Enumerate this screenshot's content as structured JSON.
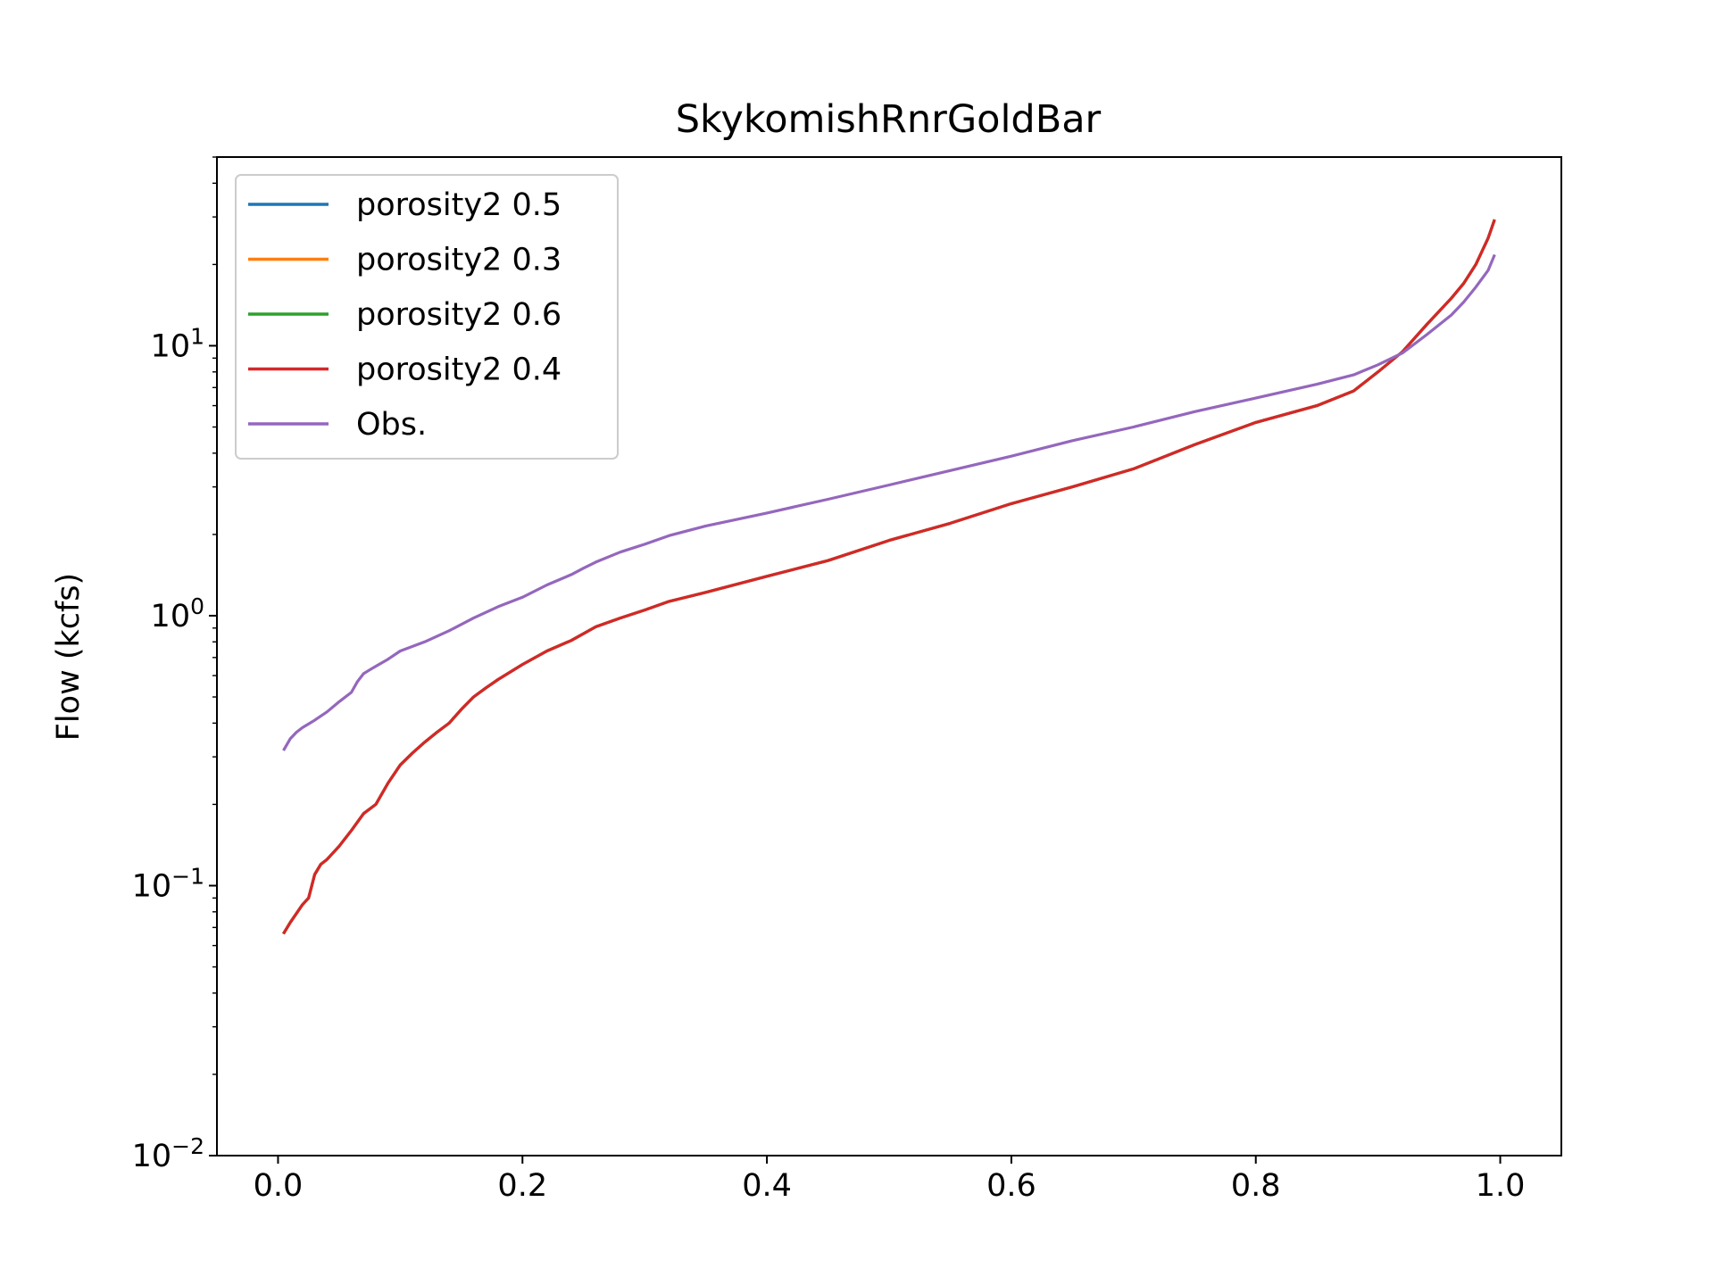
{
  "chart_data": {
    "type": "line",
    "title": "SkykomishRnrGoldBar",
    "xlabel": "",
    "ylabel": "Flow (kcfs)",
    "xlim": [
      -0.05,
      1.05
    ],
    "ylim": [
      0.01,
      50
    ],
    "yscale": "log",
    "xticks": [
      0.0,
      0.2,
      0.4,
      0.6,
      0.8,
      1.0
    ],
    "xtick_labels": [
      "0.0",
      "0.2",
      "0.4",
      "0.6",
      "0.8",
      "1.0"
    ],
    "yticks": [
      {
        "value": 0.01,
        "base": "10",
        "exp": "−2"
      },
      {
        "value": 0.1,
        "base": "10",
        "exp": "−1"
      },
      {
        "value": 1,
        "base": "10",
        "exp": "0"
      },
      {
        "value": 10,
        "base": "10",
        "exp": "1"
      }
    ],
    "grid": false,
    "legend_position": "upper-left",
    "series": [
      {
        "name": "porosity2 0.5",
        "color": "#1f77b4",
        "x": [
          0.005,
          0.01,
          0.02,
          0.025,
          0.03,
          0.035,
          0.04,
          0.05,
          0.06,
          0.07,
          0.08,
          0.09,
          0.1,
          0.11,
          0.12,
          0.13,
          0.14,
          0.15,
          0.16,
          0.17,
          0.18,
          0.2,
          0.22,
          0.24,
          0.26,
          0.28,
          0.3,
          0.32,
          0.35,
          0.4,
          0.45,
          0.5,
          0.55,
          0.6,
          0.65,
          0.7,
          0.75,
          0.8,
          0.85,
          0.88,
          0.9,
          0.92,
          0.94,
          0.96,
          0.97,
          0.98,
          0.99,
          0.995
        ],
        "y": [
          0.067,
          0.073,
          0.085,
          0.09,
          0.11,
          0.12,
          0.125,
          0.14,
          0.16,
          0.185,
          0.2,
          0.24,
          0.28,
          0.31,
          0.34,
          0.37,
          0.4,
          0.45,
          0.5,
          0.54,
          0.58,
          0.66,
          0.74,
          0.81,
          0.91,
          0.98,
          1.05,
          1.13,
          1.22,
          1.4,
          1.6,
          1.9,
          2.2,
          2.6,
          3.0,
          3.5,
          4.3,
          5.2,
          6.0,
          6.8,
          8.0,
          9.5,
          12.0,
          15.0,
          17.0,
          20.0,
          25.0,
          29.0
        ]
      },
      {
        "name": "porosity2 0.3",
        "color": "#ff7f0e",
        "x": [
          0.005,
          0.01,
          0.02,
          0.025,
          0.03,
          0.035,
          0.04,
          0.05,
          0.06,
          0.07,
          0.08,
          0.09,
          0.1,
          0.11,
          0.12,
          0.13,
          0.14,
          0.15,
          0.16,
          0.17,
          0.18,
          0.2,
          0.22,
          0.24,
          0.26,
          0.28,
          0.3,
          0.32,
          0.35,
          0.4,
          0.45,
          0.5,
          0.55,
          0.6,
          0.65,
          0.7,
          0.75,
          0.8,
          0.85,
          0.88,
          0.9,
          0.92,
          0.94,
          0.96,
          0.97,
          0.98,
          0.99,
          0.995
        ],
        "y": [
          0.067,
          0.073,
          0.085,
          0.09,
          0.11,
          0.12,
          0.125,
          0.14,
          0.16,
          0.185,
          0.2,
          0.24,
          0.28,
          0.31,
          0.34,
          0.37,
          0.4,
          0.45,
          0.5,
          0.54,
          0.58,
          0.66,
          0.74,
          0.81,
          0.91,
          0.98,
          1.05,
          1.13,
          1.22,
          1.4,
          1.6,
          1.9,
          2.2,
          2.6,
          3.0,
          3.5,
          4.3,
          5.2,
          6.0,
          6.8,
          8.0,
          9.5,
          12.0,
          15.0,
          17.0,
          20.0,
          25.0,
          29.0
        ]
      },
      {
        "name": "porosity2 0.6",
        "color": "#2ca02c",
        "x": [
          0.005,
          0.01,
          0.02,
          0.025,
          0.03,
          0.035,
          0.04,
          0.05,
          0.06,
          0.07,
          0.08,
          0.09,
          0.1,
          0.11,
          0.12,
          0.13,
          0.14,
          0.15,
          0.16,
          0.17,
          0.18,
          0.2,
          0.22,
          0.24,
          0.26,
          0.28,
          0.3,
          0.32,
          0.35,
          0.4,
          0.45,
          0.5,
          0.55,
          0.6,
          0.65,
          0.7,
          0.75,
          0.8,
          0.85,
          0.88,
          0.9,
          0.92,
          0.94,
          0.96,
          0.97,
          0.98,
          0.99,
          0.995
        ],
        "y": [
          0.067,
          0.073,
          0.085,
          0.09,
          0.11,
          0.12,
          0.125,
          0.14,
          0.16,
          0.185,
          0.2,
          0.24,
          0.28,
          0.31,
          0.34,
          0.37,
          0.4,
          0.45,
          0.5,
          0.54,
          0.58,
          0.66,
          0.74,
          0.81,
          0.91,
          0.98,
          1.05,
          1.13,
          1.22,
          1.4,
          1.6,
          1.9,
          2.2,
          2.6,
          3.0,
          3.5,
          4.3,
          5.2,
          6.0,
          6.8,
          8.0,
          9.5,
          12.0,
          15.0,
          17.0,
          20.0,
          25.0,
          29.0
        ]
      },
      {
        "name": "porosity2 0.4",
        "color": "#d62728",
        "x": [
          0.005,
          0.01,
          0.02,
          0.025,
          0.03,
          0.035,
          0.04,
          0.05,
          0.06,
          0.07,
          0.08,
          0.09,
          0.1,
          0.11,
          0.12,
          0.13,
          0.14,
          0.15,
          0.16,
          0.17,
          0.18,
          0.2,
          0.22,
          0.24,
          0.26,
          0.28,
          0.3,
          0.32,
          0.35,
          0.4,
          0.45,
          0.5,
          0.55,
          0.6,
          0.65,
          0.7,
          0.75,
          0.8,
          0.85,
          0.88,
          0.9,
          0.92,
          0.94,
          0.96,
          0.97,
          0.98,
          0.99,
          0.995
        ],
        "y": [
          0.067,
          0.073,
          0.085,
          0.09,
          0.11,
          0.12,
          0.125,
          0.14,
          0.16,
          0.185,
          0.2,
          0.24,
          0.28,
          0.31,
          0.34,
          0.37,
          0.4,
          0.45,
          0.5,
          0.54,
          0.58,
          0.66,
          0.74,
          0.81,
          0.91,
          0.98,
          1.05,
          1.13,
          1.22,
          1.4,
          1.6,
          1.9,
          2.2,
          2.6,
          3.0,
          3.5,
          4.3,
          5.2,
          6.0,
          6.8,
          8.0,
          9.5,
          12.0,
          15.0,
          17.0,
          20.0,
          25.0,
          29.0
        ]
      },
      {
        "name": "Obs.",
        "color": "#9467bd",
        "x": [
          0.005,
          0.01,
          0.015,
          0.02,
          0.03,
          0.04,
          0.05,
          0.06,
          0.065,
          0.07,
          0.075,
          0.08,
          0.09,
          0.1,
          0.12,
          0.14,
          0.16,
          0.18,
          0.2,
          0.22,
          0.24,
          0.25,
          0.26,
          0.28,
          0.3,
          0.32,
          0.35,
          0.4,
          0.45,
          0.5,
          0.55,
          0.6,
          0.65,
          0.7,
          0.75,
          0.8,
          0.85,
          0.88,
          0.9,
          0.92,
          0.94,
          0.96,
          0.97,
          0.98,
          0.99,
          0.995
        ],
        "y": [
          0.32,
          0.35,
          0.37,
          0.385,
          0.41,
          0.44,
          0.48,
          0.52,
          0.57,
          0.61,
          0.63,
          0.65,
          0.69,
          0.74,
          0.8,
          0.88,
          0.98,
          1.08,
          1.17,
          1.3,
          1.42,
          1.5,
          1.58,
          1.72,
          1.84,
          1.98,
          2.15,
          2.4,
          2.7,
          3.05,
          3.45,
          3.9,
          4.45,
          5.0,
          5.7,
          6.4,
          7.2,
          7.8,
          8.5,
          9.4,
          11.0,
          13.0,
          14.5,
          16.5,
          19.0,
          21.5
        ]
      }
    ]
  }
}
